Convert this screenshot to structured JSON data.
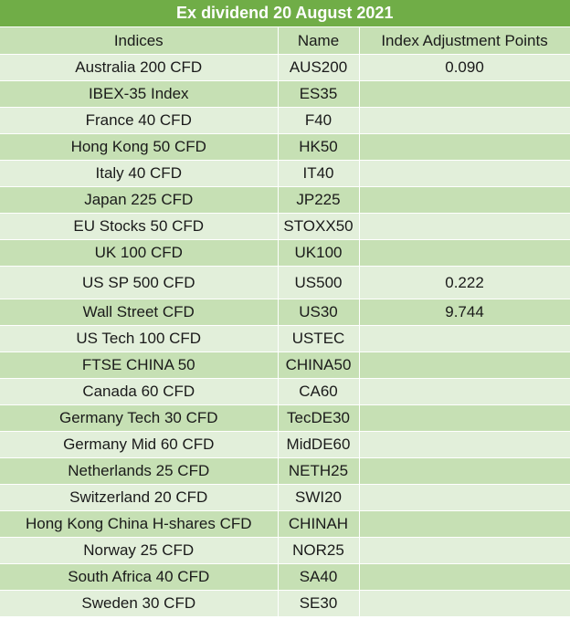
{
  "title": "Ex dividend 20 August 2021",
  "columns": [
    "Indices",
    "Name",
    "Index Adjustment Points"
  ],
  "rows": [
    {
      "index": "Australia 200 CFD",
      "name": "AUS200",
      "points": "0.090"
    },
    {
      "index": "IBEX-35 Index",
      "name": "ES35",
      "points": ""
    },
    {
      "index": "France 40 CFD",
      "name": "F40",
      "points": ""
    },
    {
      "index": "Hong Kong 50 CFD",
      "name": "HK50",
      "points": ""
    },
    {
      "index": "Italy 40 CFD",
      "name": "IT40",
      "points": ""
    },
    {
      "index": "Japan 225 CFD",
      "name": "JP225",
      "points": ""
    },
    {
      "index": "EU Stocks 50 CFD",
      "name": "STOXX50",
      "points": ""
    },
    {
      "index": "UK 100 CFD",
      "name": "UK100",
      "points": ""
    },
    {
      "index": "US SP 500 CFD",
      "name": "US500",
      "points": "0.222"
    },
    {
      "index": "Wall Street CFD",
      "name": "US30",
      "points": "9.744"
    },
    {
      "index": "US Tech 100 CFD",
      "name": "USTEC",
      "points": ""
    },
    {
      "index": "FTSE CHINA 50",
      "name": "CHINA50",
      "points": ""
    },
    {
      "index": "Canada 60 CFD",
      "name": "CA60",
      "points": ""
    },
    {
      "index": "Germany Tech 30 CFD",
      "name": "TecDE30",
      "points": ""
    },
    {
      "index": "Germany Mid 60 CFD",
      "name": "MidDE60",
      "points": ""
    },
    {
      "index": "Netherlands 25 CFD",
      "name": "NETH25",
      "points": ""
    },
    {
      "index": "Switzerland 20 CFD",
      "name": "SWI20",
      "points": ""
    },
    {
      "index": "Hong Kong China H-shares CFD",
      "name": "CHINAH",
      "points": ""
    },
    {
      "index": "Norway 25 CFD",
      "name": "NOR25",
      "points": ""
    },
    {
      "index": "South Africa 40 CFD",
      "name": "SA40",
      "points": ""
    },
    {
      "index": "Sweden 30 CFD",
      "name": "SE30",
      "points": ""
    }
  ]
}
